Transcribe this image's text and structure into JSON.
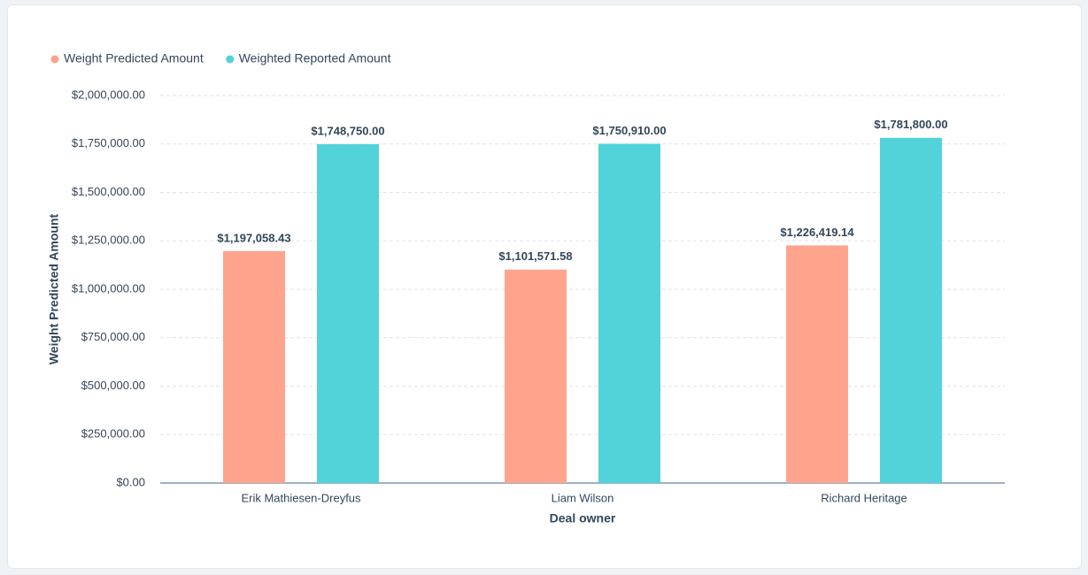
{
  "chart_data": {
    "type": "bar",
    "categories": [
      "Erik Mathiesen-Dreyfus",
      "Liam Wilson",
      "Richard Heritage"
    ],
    "series": [
      {
        "name": "Weight Predicted Amount",
        "color": "#fea48c",
        "values": [
          1197058.43,
          1101571.58,
          1226419.14
        ],
        "value_labels": [
          "$1,197,058.43",
          "$1,101,571.58",
          "$1,226,419.14"
        ]
      },
      {
        "name": "Weighted Reported Amount",
        "color": "#51d3d9",
        "values": [
          1748750,
          1750910,
          1781800
        ],
        "value_labels": [
          "$1,748,750.00",
          "$1,750,910.00",
          "$1,781,800.00"
        ]
      }
    ],
    "x_label": "Deal owner",
    "y_label": "Weight Predicted Amount",
    "ylim": [
      0,
      2000000
    ],
    "yticks": [
      {
        "value": 0,
        "label": "$0.00"
      },
      {
        "value": 250000,
        "label": "$250,000.00"
      },
      {
        "value": 500000,
        "label": "$500,000.00"
      },
      {
        "value": 750000,
        "label": "$750,000.00"
      },
      {
        "value": 1000000,
        "label": "$1,000,000.00"
      },
      {
        "value": 1250000,
        "label": "$1,250,000.00"
      },
      {
        "value": 1500000,
        "label": "$1,500,000.00"
      },
      {
        "value": 1750000,
        "label": "$1,750,000.00"
      },
      {
        "value": 2000000,
        "label": "$2,000,000.00"
      }
    ],
    "grid": true,
    "legend": "top-left"
  }
}
